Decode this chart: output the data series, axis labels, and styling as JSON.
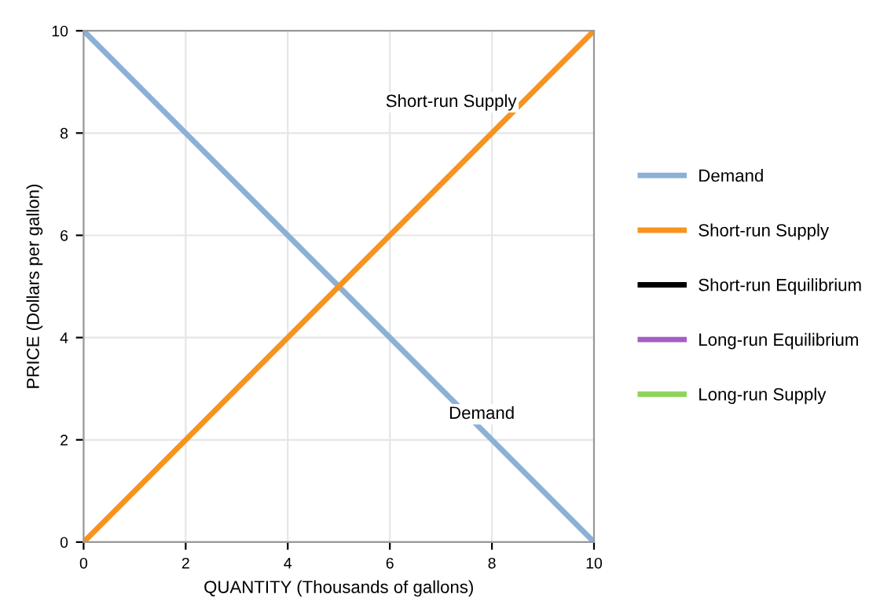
{
  "chart_data": {
    "type": "line",
    "xlabel": "QUANTITY (Thousands of gallons)",
    "ylabel": "PRICE (Dollars per gallon)",
    "x": [
      0,
      10
    ],
    "xlim": [
      0,
      10
    ],
    "ylim": [
      0,
      10
    ],
    "xticks": [
      0,
      2,
      4,
      6,
      8,
      10
    ],
    "yticks": [
      0,
      2,
      4,
      6,
      8,
      10
    ],
    "grid": true,
    "legend": "right",
    "series": [
      {
        "name": "Demand",
        "color": "#8cb0d6",
        "values": [
          10,
          0
        ]
      },
      {
        "name": "Short-run Supply",
        "color": "#f7931e",
        "values": [
          0,
          10
        ]
      },
      {
        "name": "Short-run Equilibrium",
        "color": "#000000",
        "values": [
          null,
          null
        ]
      },
      {
        "name": "Long-run Equilibrium",
        "color": "#a45ec4",
        "values": [
          null,
          null
        ]
      },
      {
        "name": "Long-run Supply",
        "color": "#8ed35a",
        "values": [
          null,
          null
        ]
      }
    ],
    "annotations": [
      "Short-run Supply",
      "Demand"
    ]
  }
}
